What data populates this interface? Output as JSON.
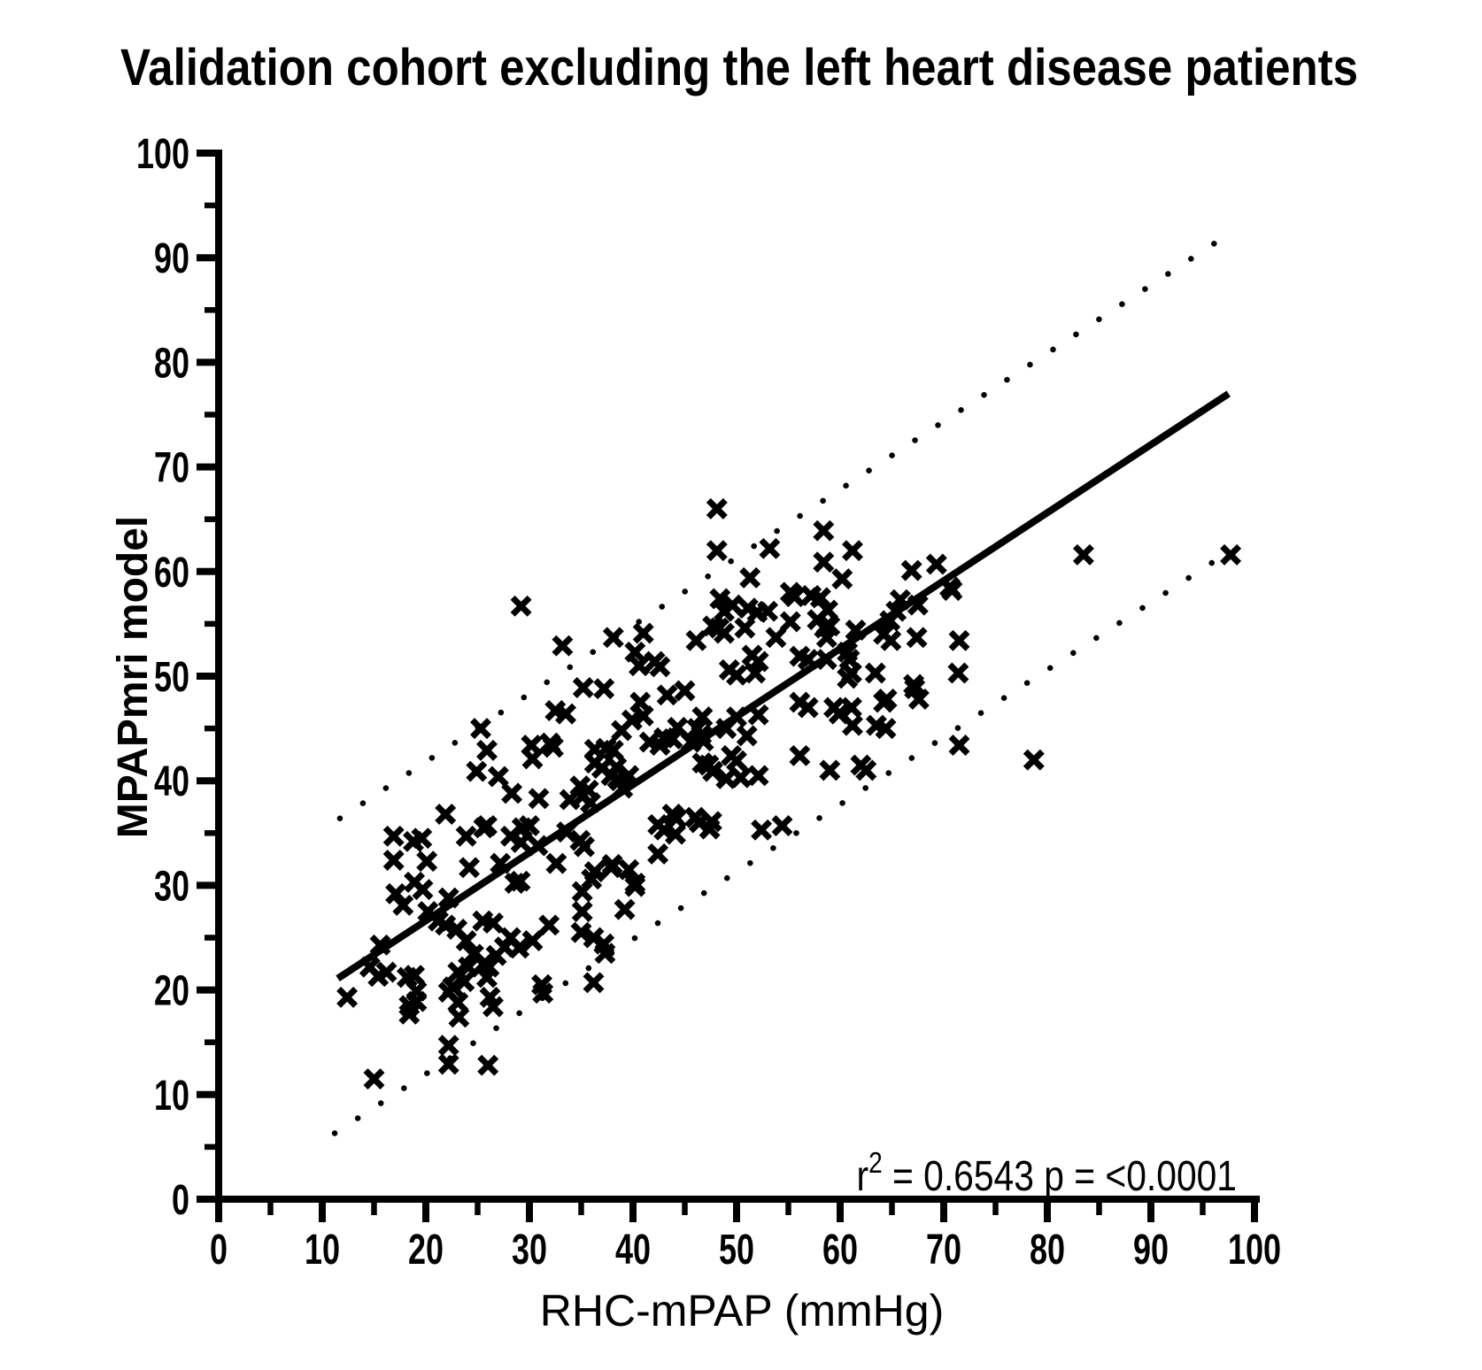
{
  "title": "Validation cohort excluding the left heart disease patients",
  "stats_annotation": {
    "prefix": "r",
    "superscript": "2",
    "suffix": " = 0.6543 p = <0.0001"
  },
  "x_axis": {
    "label": "RHC-mPAP (mmHg)",
    "min": 0,
    "max": 100,
    "major_step": 10,
    "minor_step": 5,
    "tick_labels": [
      "0",
      "10",
      "20",
      "30",
      "40",
      "50",
      "60",
      "70",
      "80",
      "90",
      "100"
    ]
  },
  "y_axis": {
    "label": "MPAPmri model",
    "min": 0,
    "max": 100,
    "major_step": 10,
    "minor_step": 5,
    "tick_labels": [
      "0",
      "10",
      "20",
      "30",
      "40",
      "50",
      "60",
      "70",
      "80",
      "90",
      "100"
    ]
  },
  "chart_data": {
    "type": "scatter",
    "marker": "x",
    "color": "#000000",
    "title": "Validation cohort excluding the left heart disease patients",
    "xlabel": "RHC-mPAP (mmHg)",
    "ylabel": "MPAPmri model",
    "xlim": [
      0,
      100
    ],
    "ylim": [
      0,
      100
    ],
    "grid": false,
    "legend": false,
    "r_squared": 0.6543,
    "p_value": "<0.0001",
    "regression_line": {
      "style": "solid",
      "x_start": 11.5,
      "y_start": 21.1,
      "x_end": 97.5,
      "y_end": 77.0
    },
    "confidence_bands": {
      "upper": {
        "style": "dotted",
        "x_start": 11.7,
        "y_start": 36.4,
        "x_end": 96.8,
        "y_end": 91.8
      },
      "lower": {
        "style": "dotted",
        "x_start": 11.2,
        "y_start": 6.3,
        "x_end": 97.7,
        "y_end": 62.0
      }
    },
    "points": [
      [
        12.4,
        19.3
      ],
      [
        15,
        11.5
      ],
      [
        14.6,
        22.2
      ],
      [
        15.4,
        21.3
      ],
      [
        15.6,
        24.3
      ],
      [
        16.2,
        21.7
      ],
      [
        16.9,
        34.7
      ],
      [
        16.9,
        32.4
      ],
      [
        17.1,
        29.2
      ],
      [
        17.8,
        28.1
      ],
      [
        18.2,
        21.2
      ],
      [
        18.9,
        21.4
      ],
      [
        18.4,
        18.5
      ],
      [
        19.1,
        19.9
      ],
      [
        19.1,
        18.9
      ],
      [
        18.4,
        17.7
      ],
      [
        18.9,
        30.3
      ],
      [
        19.7,
        29.6
      ],
      [
        19.6,
        34.5
      ],
      [
        18.8,
        34.2
      ],
      [
        20.1,
        32.3
      ],
      [
        20.2,
        27.5
      ],
      [
        21.2,
        26.6
      ],
      [
        21.9,
        26.2
      ],
      [
        21.9,
        36.8
      ],
      [
        22.2,
        28.8
      ],
      [
        22.6,
        20.3
      ],
      [
        22.2,
        19.8
      ],
      [
        23.1,
        21.7
      ],
      [
        23.7,
        20.8
      ],
      [
        24.1,
        22.2
      ],
      [
        25.9,
        21.2
      ],
      [
        26.1,
        22.2
      ],
      [
        23.1,
        18.8
      ],
      [
        23.2,
        17.4
      ],
      [
        22.2,
        14.7
      ],
      [
        22.2,
        12.9
      ],
      [
        26,
        12.8
      ],
      [
        23,
        25.8
      ],
      [
        23.9,
        24.7
      ],
      [
        24.6,
        23.4
      ],
      [
        25.7,
        22.6
      ],
      [
        26.8,
        23.3
      ],
      [
        27.6,
        24.1
      ],
      [
        28.2,
        25
      ],
      [
        29,
        24
      ],
      [
        30.3,
        24.7
      ],
      [
        31.9,
        26.2
      ],
      [
        25.5,
        26.6
      ],
      [
        26.5,
        26.4
      ],
      [
        26.2,
        19.3
      ],
      [
        26.5,
        18.4
      ],
      [
        23.9,
        34.7
      ],
      [
        24.2,
        31.7
      ],
      [
        25.9,
        35.7
      ],
      [
        27.2,
        32.1
      ],
      [
        28.2,
        34.7
      ],
      [
        29.2,
        34.1
      ],
      [
        30,
        35.7
      ],
      [
        30.8,
        33.8
      ],
      [
        28.6,
        30.2
      ],
      [
        29.1,
        30.4
      ],
      [
        31.2,
        20.5
      ],
      [
        31.3,
        19.7
      ],
      [
        32.6,
        32.1
      ],
      [
        33.6,
        35.1
      ],
      [
        34.9,
        34.3
      ],
      [
        35.3,
        33.7
      ],
      [
        38,
        32
      ],
      [
        39.6,
        31.5
      ],
      [
        40.2,
        29.9
      ],
      [
        36.2,
        25
      ],
      [
        37.3,
        23.5
      ],
      [
        36.2,
        20.7
      ],
      [
        37.2,
        24.4
      ],
      [
        35,
        25.5
      ],
      [
        35.1,
        27.5
      ],
      [
        39.2,
        27.7
      ],
      [
        35.1,
        29.4
      ],
      [
        36,
        30.6
      ],
      [
        36.3,
        31.3
      ],
      [
        37.9,
        31.7
      ],
      [
        40.2,
        30.2
      ],
      [
        42.4,
        33
      ],
      [
        44.1,
        34.9
      ],
      [
        47.4,
        35.4
      ],
      [
        52.4,
        35.3
      ],
      [
        54.4,
        35.7
      ],
      [
        29.2,
        56.7
      ],
      [
        33.2,
        52.9
      ],
      [
        38.1,
        53.7
      ],
      [
        35.2,
        48.9
      ],
      [
        37.2,
        48.8
      ],
      [
        32.5,
        46.7
      ],
      [
        33.5,
        46.4
      ],
      [
        25.3,
        45
      ],
      [
        25.9,
        42.9
      ],
      [
        30.2,
        43.4
      ],
      [
        30.3,
        42.1
      ],
      [
        32,
        43.6
      ],
      [
        32.3,
        43.2
      ],
      [
        36.3,
        43
      ],
      [
        38.1,
        42.9
      ],
      [
        24.9,
        40.9
      ],
      [
        27,
        40.4
      ],
      [
        28.3,
        38.8
      ],
      [
        30.9,
        38.3
      ],
      [
        33.9,
        38.2
      ],
      [
        35.1,
        38.5
      ],
      [
        35.9,
        37.9
      ],
      [
        38.4,
        41.3
      ],
      [
        38.5,
        40.2
      ],
      [
        39,
        39.3
      ],
      [
        25.6,
        35.5
      ],
      [
        29.3,
        35.5
      ],
      [
        36.3,
        41.7
      ],
      [
        37,
        41.2
      ],
      [
        37.9,
        40.5
      ],
      [
        38.7,
        40
      ],
      [
        39.6,
        40.5
      ],
      [
        35.7,
        39.1
      ],
      [
        34.9,
        39.5
      ],
      [
        41,
        54.1
      ],
      [
        40.2,
        52.3
      ],
      [
        40.6,
        51
      ],
      [
        42.1,
        51.4
      ],
      [
        42.6,
        50.9
      ],
      [
        46.1,
        53.4
      ],
      [
        43.3,
        48.2
      ],
      [
        45,
        48.6
      ],
      [
        46.7,
        46.1
      ],
      [
        40.7,
        47.5
      ],
      [
        41,
        46.2
      ],
      [
        39.9,
        45.8
      ],
      [
        49,
        45
      ],
      [
        46.2,
        45
      ],
      [
        44.3,
        45.1
      ],
      [
        46.6,
        44.4
      ],
      [
        46.8,
        43.8
      ],
      [
        45.6,
        43.7
      ],
      [
        43.8,
        44
      ],
      [
        43,
        44.1
      ],
      [
        42.6,
        43.4
      ],
      [
        41.6,
        43.7
      ],
      [
        38.9,
        44.8
      ],
      [
        37.4,
        43.1
      ],
      [
        43.8,
        36.8
      ],
      [
        44.2,
        36.4
      ],
      [
        46,
        36.5
      ],
      [
        46.4,
        36
      ],
      [
        47.6,
        36.1
      ],
      [
        43,
        35.3
      ],
      [
        42.4,
        35.8
      ],
      [
        48.1,
        66
      ],
      [
        48.1,
        62
      ],
      [
        53.2,
        62.2
      ],
      [
        51.3,
        59.4
      ],
      [
        48.4,
        57.4
      ],
      [
        55.2,
        58
      ],
      [
        55.6,
        57.6
      ],
      [
        48.8,
        56.2
      ],
      [
        49.6,
        56.8
      ],
      [
        51.1,
        56.5
      ],
      [
        52,
        56.1
      ],
      [
        53,
        56.2
      ],
      [
        47.7,
        54.8
      ],
      [
        48.3,
        54.6
      ],
      [
        48.8,
        54.1
      ],
      [
        50.8,
        54.6
      ],
      [
        53.8,
        53.7
      ],
      [
        55.2,
        55.2
      ],
      [
        49.3,
        50.6
      ],
      [
        50,
        50.1
      ],
      [
        51.8,
        50.3
      ],
      [
        51.5,
        52
      ],
      [
        52.1,
        51.4
      ],
      [
        50,
        46.1
      ],
      [
        52.1,
        46.3
      ],
      [
        51,
        44.3
      ],
      [
        49.5,
        42.4
      ],
      [
        50,
        41.9
      ],
      [
        50.4,
        40.3
      ],
      [
        49,
        40.2
      ],
      [
        47.7,
        40.9
      ],
      [
        47.3,
        41.5
      ],
      [
        46.7,
        41.7
      ],
      [
        52.1,
        40.5
      ],
      [
        58.4,
        63.9
      ],
      [
        58.4,
        60.9
      ],
      [
        61.2,
        62
      ],
      [
        60.2,
        59.3
      ],
      [
        57.2,
        57.7
      ],
      [
        58.1,
        57.5
      ],
      [
        58.8,
        56.3
      ],
      [
        59,
        54.8
      ],
      [
        57.8,
        55.4
      ],
      [
        58.7,
        53.7
      ],
      [
        58.5,
        54.6
      ],
      [
        61.5,
        54.4
      ],
      [
        56.1,
        51.9
      ],
      [
        56.9,
        51.6
      ],
      [
        58.7,
        51.6
      ],
      [
        60.7,
        52.3
      ],
      [
        60.9,
        51.6
      ],
      [
        60.7,
        49.8
      ],
      [
        56.1,
        47.5
      ],
      [
        56.9,
        47
      ],
      [
        59.4,
        47
      ],
      [
        59.9,
        46.4
      ],
      [
        56.1,
        42.4
      ],
      [
        59,
        41
      ],
      [
        61.2,
        45.3
      ],
      [
        62,
        41.5
      ],
      [
        62.5,
        41
      ],
      [
        61.1,
        50.3
      ],
      [
        61.1,
        47
      ],
      [
        63.4,
        50.3
      ],
      [
        63.5,
        45.3
      ],
      [
        64.2,
        54
      ],
      [
        64.9,
        53.4
      ],
      [
        64.2,
        47.5
      ],
      [
        64.4,
        45
      ],
      [
        64.5,
        47.8
      ],
      [
        64.8,
        55.3
      ],
      [
        65.4,
        56.2
      ],
      [
        65.8,
        57.3
      ],
      [
        67.5,
        56.8
      ],
      [
        66.9,
        60.1
      ],
      [
        67.4,
        53.7
      ],
      [
        67.1,
        49.2
      ],
      [
        67.2,
        48.8
      ],
      [
        67.6,
        47.8
      ],
      [
        69.3,
        60.7
      ],
      [
        70.6,
        58.5
      ],
      [
        70.8,
        58.2
      ],
      [
        71.5,
        53.4
      ],
      [
        71.4,
        50.3
      ],
      [
        71.5,
        43.4
      ],
      [
        78.7,
        42
      ],
      [
        83.5,
        61.6
      ],
      [
        97.7,
        61.6
      ]
    ]
  }
}
